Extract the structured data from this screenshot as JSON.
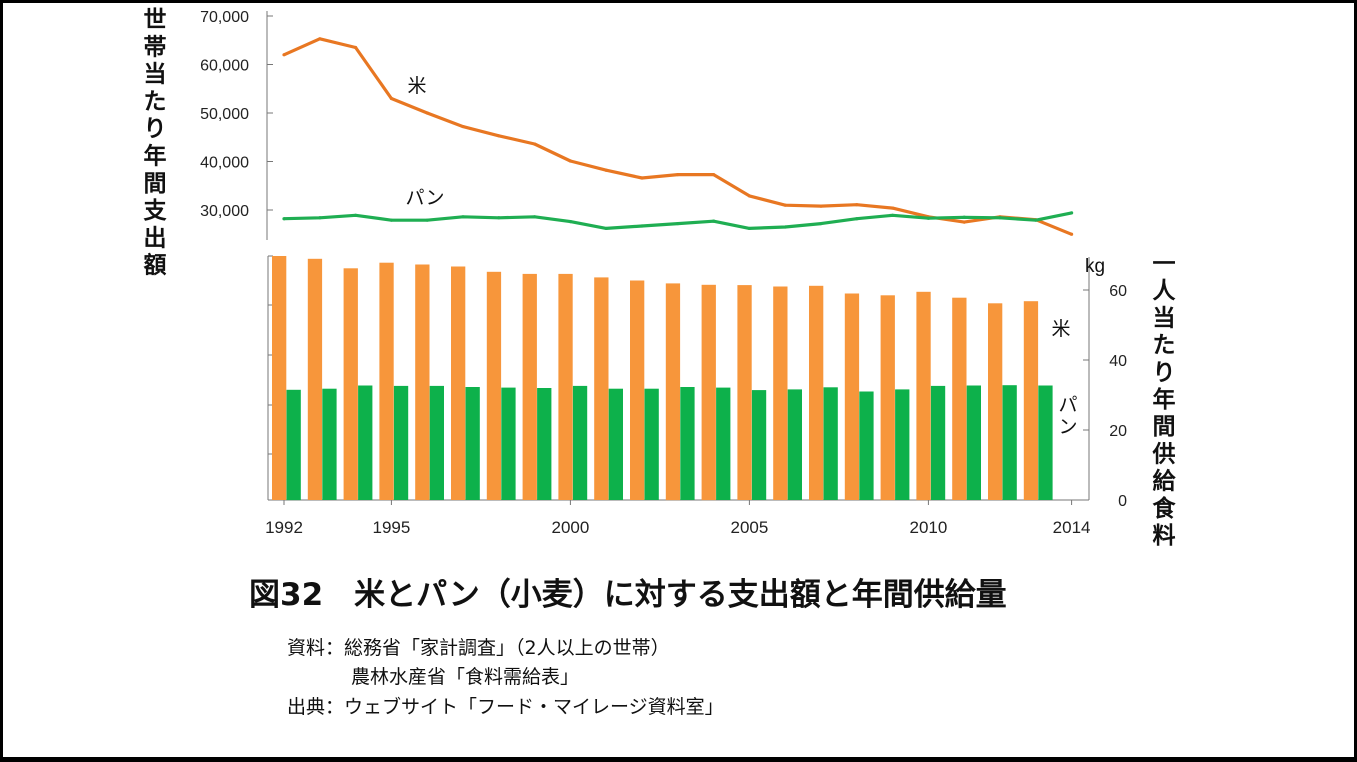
{
  "figure_title": "図32　米とパン（小麦）に対する支出額と年間供給量",
  "sources": {
    "line1": "資料：総務省「家計調査」（2人以上の世帯）",
    "line2": "農林水産省「食料需給表」",
    "line3": "出典：ウェブサイト「フード・マイレージ資料室」"
  },
  "colors": {
    "rice": "#e87722",
    "rice_bar": "#f7963b",
    "bread": "#1fae52",
    "bread_bar": "#0db14b",
    "axis": "#777777"
  },
  "chart_data": [
    {
      "type": "line",
      "ylabel": "世帯当たり年間支出額",
      "ylim": [
        25000,
        70000
      ],
      "yticks": [
        "70,000",
        "60,000",
        "50,000",
        "40,000",
        "30,000"
      ],
      "x": [
        1992,
        1993,
        1994,
        1995,
        1996,
        1997,
        1998,
        1999,
        2000,
        2001,
        2002,
        2003,
        2004,
        2005,
        2006,
        2007,
        2008,
        2009,
        2010,
        2011,
        2012,
        2013,
        2014
      ],
      "series": [
        {
          "name": "米",
          "values": [
            62000,
            65300,
            63500,
            53000,
            50000,
            47200,
            45300,
            43600,
            40100,
            38200,
            36600,
            37300,
            37300,
            32900,
            31000,
            30800,
            31100,
            30400,
            28600,
            27500,
            28600,
            28000,
            25000
          ]
        },
        {
          "name": "パン",
          "values": [
            28200,
            28400,
            28900,
            27900,
            27900,
            28600,
            28400,
            28600,
            27600,
            26200,
            26700,
            27200,
            27700,
            26200,
            26500,
            27200,
            28200,
            28900,
            28300,
            28500,
            28400,
            27900,
            29400
          ]
        }
      ]
    },
    {
      "type": "bar",
      "ylabel": "一人当たり年間供給食料",
      "unit": "kg",
      "ylim": [
        0,
        70
      ],
      "yticks": [
        "60",
        "40",
        "20",
        "0"
      ],
      "categories": [
        1992,
        1993,
        1994,
        1995,
        1996,
        1997,
        1998,
        1999,
        2000,
        2001,
        2002,
        2003,
        2004,
        2005,
        2006,
        2007,
        2008,
        2009,
        2010,
        2011,
        2012,
        2013
      ],
      "xticks": [
        "1992",
        "1995",
        "2000",
        "2005",
        "2010",
        "2014"
      ],
      "series": [
        {
          "name": "米",
          "values": [
            69.7,
            68.9,
            66.2,
            67.8,
            67.3,
            66.7,
            65.2,
            64.6,
            64.6,
            63.6,
            62.7,
            61.9,
            61.5,
            61.4,
            61.0,
            61.2,
            59.0,
            58.5,
            59.5,
            57.8,
            56.2,
            56.8
          ]
        },
        {
          "name": "パン",
          "values": [
            31.5,
            31.8,
            32.7,
            32.6,
            32.6,
            32.3,
            32.1,
            32.0,
            32.6,
            31.8,
            31.8,
            32.3,
            32.1,
            31.4,
            31.6,
            32.2,
            31.0,
            31.6,
            32.6,
            32.7,
            32.8,
            32.7
          ]
        }
      ]
    }
  ]
}
